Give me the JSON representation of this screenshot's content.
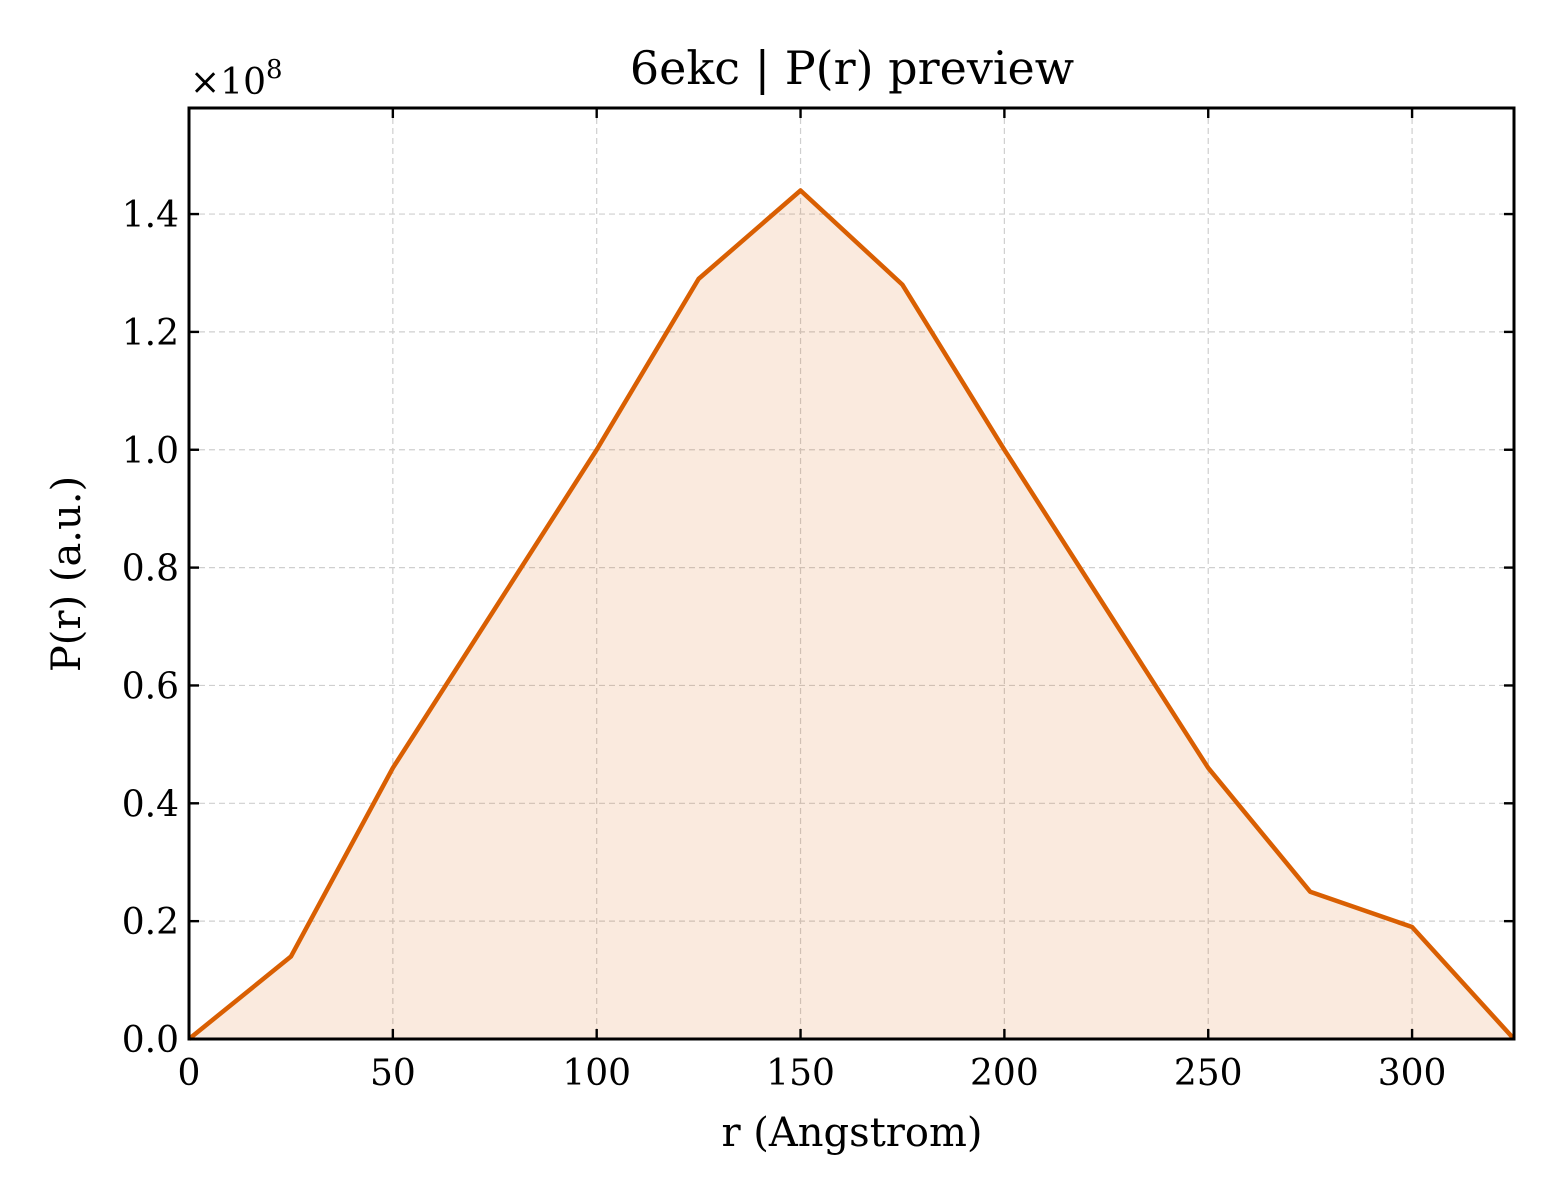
{
  "chart_data": {
    "type": "area",
    "title": "6ekc | P(r) preview",
    "xlabel": "r (Angstrom)",
    "ylabel": "P(r) (a.u.)",
    "y_multiplier_label": "×10",
    "y_multiplier_exponent": "8",
    "xlim": [
      0,
      325
    ],
    "ylim": [
      0,
      1.58
    ],
    "x_ticks": [
      0,
      50,
      100,
      150,
      200,
      250,
      300
    ],
    "x_tick_labels": [
      "0",
      "50",
      "100",
      "150",
      "200",
      "250",
      "300"
    ],
    "y_ticks": [
      0,
      0.2,
      0.4,
      0.6,
      0.8,
      1.0,
      1.2,
      1.4
    ],
    "y_tick_labels": [
      "0.0",
      "0.2",
      "0.4",
      "0.6",
      "0.8",
      "1.0",
      "1.2",
      "1.4"
    ],
    "grid": true,
    "series": [
      {
        "x": [
          0,
          25,
          50,
          75,
          100,
          125,
          150,
          175,
          200,
          225,
          250,
          275,
          300,
          325
        ],
        "y": [
          0.0,
          0.14,
          0.46,
          0.73,
          1.0,
          1.29,
          1.44,
          1.28,
          1.0,
          0.73,
          0.46,
          0.25,
          0.19,
          0.0
        ],
        "color": "#d95f02",
        "fill_color": "#d95f02",
        "fill_opacity": 0.13
      }
    ]
  }
}
